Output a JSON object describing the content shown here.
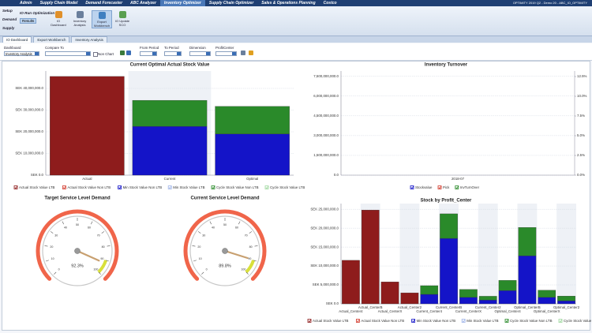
{
  "nav": {
    "items": [
      {
        "label": "Admin"
      },
      {
        "label": "Supply Chain Model"
      },
      {
        "label": "Demand Forecaster"
      },
      {
        "label": "ABC Analyzer"
      },
      {
        "label": "Inventory Optimizer",
        "active": true
      },
      {
        "label": "Supply Chain Optimizer"
      },
      {
        "label": "Sales & Operations Planning"
      },
      {
        "label": "Costco"
      }
    ],
    "session": "OPTIMITY 2019 Q2 - Demo 20 - ABC_IO_OPTIMITY"
  },
  "ribbon": {
    "sections": [
      "Setup",
      "Demand",
      "Supply"
    ],
    "group": "IO Run Optimization",
    "button": "Results",
    "tools": [
      {
        "label": "IO Dashboard",
        "color": "#e0902a"
      },
      {
        "label": "Inventory Analysis",
        "color": "#6a7f9c"
      },
      {
        "label": "Export Workbench",
        "color": "#3f7fc0",
        "selected": true
      },
      {
        "label": "IO Update SCO",
        "color": "#5aa050"
      }
    ]
  },
  "tabs": [
    "IO Dashboard",
    "Export Workbench",
    "Inventory Analysis"
  ],
  "filters": {
    "dashboard": {
      "label": "Dashboard",
      "value": "Inventory Analysis"
    },
    "compare_to": "Compare To",
    "non_chart": "Non Chart",
    "from_period": "From Period",
    "to_period": "To Period",
    "dimension": "Dimension",
    "profit_center": "ProfitCenter"
  },
  "chart_data": [
    {
      "type": "bar",
      "stacked": true,
      "title": "Current Optimal Actual Stock Value",
      "categories": [
        "Actual",
        "Current",
        "Optimal"
      ],
      "series": [
        {
          "name": "Actual Stock Value LTB",
          "color": "#8e1c1c",
          "values": [
            45500000,
            0,
            0
          ]
        },
        {
          "name": "Actual Stock Value Non LTB",
          "color": "#d33a2c",
          "values": [
            0,
            0,
            0
          ]
        },
        {
          "name": "Min Stock Value Non LTB",
          "color": "#1414c8",
          "values": [
            0,
            22500000,
            19000000
          ]
        },
        {
          "name": "Min Stock Value LTB",
          "color": "#9fb4e8",
          "values": [
            0,
            0,
            0
          ]
        },
        {
          "name": "Cycle Stock Value Non LTB",
          "color": "#2a8a2a",
          "values": [
            0,
            12000000,
            12700000
          ]
        },
        {
          "name": "Cycle Stock Value LTB",
          "color": "#9fd89f",
          "values": [
            0,
            0,
            0
          ]
        }
      ],
      "ylim": [
        0,
        48000000
      ],
      "yticks": [
        {
          "value": 0,
          "label": "SEK 0.0"
        },
        {
          "value": 10000000,
          "label": "SEK 10,000,000.0"
        },
        {
          "value": 20000000,
          "label": "SEK 20,000,000.0"
        },
        {
          "value": 30000000,
          "label": "SEK 30,000,000.0"
        },
        {
          "value": 40000000,
          "label": "SEK 40,000,000.0"
        }
      ],
      "grid": true
    },
    {
      "type": "bar",
      "title": "Inventory Turnover",
      "categories": [
        "2018-07"
      ],
      "series": [
        {
          "name": "Stockvalue",
          "color": "#1414c8"
        },
        {
          "name": "Pick",
          "color": "#d33a2c"
        },
        {
          "name": "InvTurnOver",
          "color": "#2a8a2a",
          "axis": "y2"
        }
      ],
      "ylim": [
        0,
        7900000000
      ],
      "yticks": [
        {
          "value": 0,
          "label": "0.0"
        },
        {
          "value": 1500000000,
          "label": "1,500,000,000.0"
        },
        {
          "value": 3000000000,
          "label": "3,000,000,000.0"
        },
        {
          "value": 4500000000,
          "label": "4,500,000,000.0"
        },
        {
          "value": 6000000000,
          "label": "6,000,000,000.0"
        },
        {
          "value": 7500000000,
          "label": "7,500,000,000.0"
        }
      ],
      "y2lim": [
        0,
        13.2
      ],
      "y2ticks": [
        {
          "value": 0,
          "label": "0.0%"
        },
        {
          "value": 2.5,
          "label": "2.5%"
        },
        {
          "value": 5,
          "label": "5.0%"
        },
        {
          "value": 7.5,
          "label": "7.5%"
        },
        {
          "value": 10,
          "label": "10.0%"
        },
        {
          "value": 12.5,
          "label": "12.5%"
        }
      ],
      "grid": true
    },
    {
      "type": "gauge",
      "title": "Target Service Level Demand",
      "value": 92.3,
      "value_label": "92.3%",
      "ylim": [
        0,
        100
      ],
      "yticks": [
        0,
        10,
        20,
        30,
        40,
        50,
        60,
        70,
        80,
        90,
        100
      ],
      "color": "#f0654a",
      "bands": [
        {
          "from": 90,
          "to": 100,
          "color": "#d8e03a"
        }
      ]
    },
    {
      "type": "gauge",
      "title": "Current Service Level Demand",
      "value": 89.8,
      "value_label": "89.8%",
      "ylim": [
        0,
        100
      ],
      "yticks": [
        0,
        10,
        20,
        30,
        40,
        50,
        60,
        70,
        80,
        90,
        100
      ],
      "color": "#f0654a",
      "bands": [
        {
          "from": 90,
          "to": 100,
          "color": "#d8e03a"
        }
      ]
    },
    {
      "type": "bar",
      "stacked": true,
      "title": "Stock by Profit_Center",
      "categories": [
        "Actual_Center4",
        "Actual_CenterB",
        "Actual_CenterX",
        "Actual_Center2",
        "Current_Center4",
        "Current_CenterB",
        "Current_CenterX",
        "Current_Center2",
        "Optimal_Center4",
        "Optimal_CenterB",
        "Optimal_CenterX",
        "Optimal_Center2"
      ],
      "series": [
        {
          "name": "Actual Stock Value LTB",
          "color": "#8e1c1c",
          "values": [
            11500000,
            24800000,
            5800000,
            2900000,
            0,
            0,
            0,
            0,
            0,
            0,
            0,
            0
          ]
        },
        {
          "name": "Actual Stock Value Non LTB",
          "color": "#d33a2c",
          "values": [
            0,
            0,
            0,
            0,
            0,
            0,
            0,
            0,
            0,
            0,
            0,
            0
          ]
        },
        {
          "name": "Min Stock Value Non LTB",
          "color": "#1414c8",
          "values": [
            0,
            0,
            0,
            0,
            2500000,
            17300000,
            1700000,
            1000000,
            3500000,
            12700000,
            1700000,
            800000
          ]
        },
        {
          "name": "Min Stock Value LTB",
          "color": "#9fb4e8",
          "values": [
            0,
            0,
            0,
            0,
            0,
            0,
            0,
            0,
            0,
            0,
            0,
            0
          ]
        },
        {
          "name": "Cycle Stock Value Non LTB",
          "color": "#2a8a2a",
          "values": [
            0,
            0,
            0,
            0,
            2300000,
            6500000,
            2100000,
            1000000,
            2700000,
            7500000,
            1900000,
            1250000
          ]
        },
        {
          "name": "Cycle Stock Value LTB",
          "color": "#9fd89f",
          "values": [
            0,
            0,
            0,
            0,
            0,
            0,
            0,
            0,
            0,
            0,
            0,
            0
          ]
        }
      ],
      "ylim": [
        0,
        26500000
      ],
      "yticks": [
        {
          "value": 0,
          "label": "SEK 0.0"
        },
        {
          "value": 5000000,
          "label": "SEK 5,000,000.0"
        },
        {
          "value": 10000000,
          "label": "SEK 10,000,000.0"
        },
        {
          "value": 15000000,
          "label": "SEK 15,000,000.0"
        },
        {
          "value": 20000000,
          "label": "SEK 20,000,000.0"
        },
        {
          "value": 25000000,
          "label": "SEK 25,000,000.0"
        }
      ],
      "grid": true
    }
  ]
}
